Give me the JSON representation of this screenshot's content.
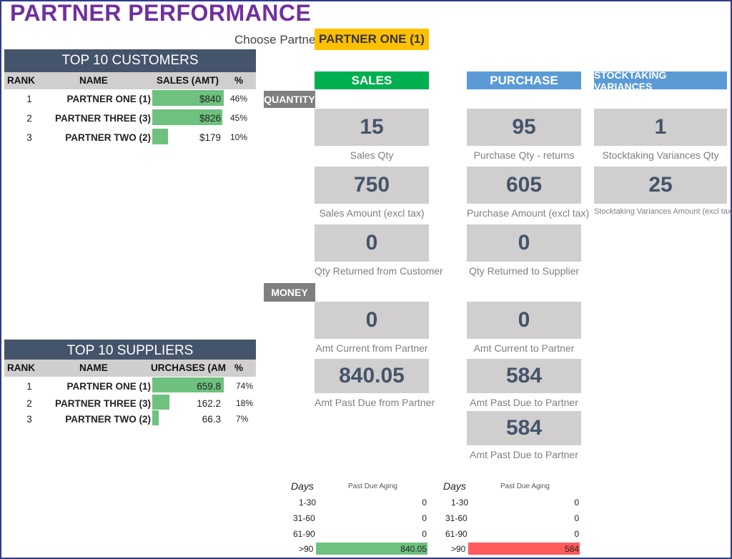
{
  "title": "PARTNER PERFORMANCE",
  "choose_label": "Choose Partner",
  "selected_partner": "PARTNER ONE (1)",
  "colors": {
    "accent": "#7030a0",
    "select": "#ffc000",
    "sales": "#00b050",
    "purchase": "#5b9bd5",
    "bar": "#6ec17f",
    "overdue": "#ff5b5b"
  },
  "customers": {
    "title": "TOP 10 CUSTOMERS",
    "headers": {
      "rank": "RANK",
      "name": "NAME",
      "sales": "SALES (AMT)",
      "pct": "%"
    },
    "rows": [
      {
        "rank": "1",
        "name": "PARTNER ONE (1)",
        "value": "$840",
        "pct": "46%",
        "share": 0.46
      },
      {
        "rank": "2",
        "name": "PARTNER THREE (3)",
        "value": "$826",
        "pct": "45%",
        "share": 0.45
      },
      {
        "rank": "3",
        "name": "PARTNER TWO (2)",
        "value": "$179",
        "pct": "10%",
        "share": 0.1
      }
    ]
  },
  "suppliers": {
    "title": "TOP 10 SUPPLIERS",
    "headers": {
      "rank": "RANK",
      "name": "NAME",
      "purchases": "URCHASES (AM",
      "pct": "%"
    },
    "rows": [
      {
        "rank": "1",
        "name": "PARTNER ONE (1)",
        "value": "659.8",
        "pct": "74%",
        "share": 0.74
      },
      {
        "rank": "2",
        "name": "PARTNER THREE (3)",
        "value": "162.2",
        "pct": "18%",
        "share": 0.18
      },
      {
        "rank": "3",
        "name": "PARTNER TWO (2)",
        "value": "66.3",
        "pct": "7%",
        "share": 0.07
      }
    ]
  },
  "labels": {
    "quantity": "QUANTITY",
    "money": "MONEY",
    "sales": "SALES",
    "purchase": "PURCHASE",
    "stocktaking": "STOCKTAKING VARIANCES"
  },
  "sales": {
    "qty": {
      "value": "15",
      "caption": "Sales Qty"
    },
    "amount": {
      "value": "750",
      "caption": "Sales Amount (excl tax)"
    },
    "returned": {
      "value": "0",
      "caption": "Qty Returned from Customer"
    },
    "amt_current": {
      "value": "0",
      "caption": "Amt Current from Partner"
    },
    "amt_past_due": {
      "value": "840.05",
      "caption": "Amt Past Due from Partner"
    }
  },
  "purchase": {
    "qty": {
      "value": "95",
      "caption": "Purchase Qty - returns"
    },
    "amount": {
      "value": "605",
      "caption": "Purchase Amount (excl tax)"
    },
    "returned": {
      "value": "0",
      "caption": "Qty Returned to Supplier"
    },
    "amt_current": {
      "value": "0",
      "caption": "Amt Current to Partner"
    },
    "amt_past_due": {
      "value": "584",
      "caption": "Amt Past Due to Partner"
    },
    "amt_past_due_2": {
      "value": "584",
      "caption": "Amt Past Due to Partner"
    }
  },
  "stocktaking": {
    "qty": {
      "value": "1",
      "caption": "Stocktaking Variances Qty"
    },
    "amount": {
      "value": "25",
      "caption": "Stocktaking Variances Amount (excl tax)"
    }
  },
  "aging_sales": {
    "days_label": "Days",
    "sub_label": "Past Due Aging",
    "rows": [
      {
        "range": "1-30",
        "value": "0",
        "level": 0
      },
      {
        "range": "31-60",
        "value": "0",
        "level": 0
      },
      {
        "range": "61-90",
        "value": "0",
        "level": 0
      },
      {
        "range": ">90",
        "value": "840.05",
        "level": 1
      }
    ]
  },
  "aging_purchase": {
    "days_label": "Days",
    "sub_label": "Past Due Aging",
    "rows": [
      {
        "range": "1-30",
        "value": "0",
        "level": 0
      },
      {
        "range": "31-60",
        "value": "0",
        "level": 0
      },
      {
        "range": "61-90",
        "value": "0",
        "level": 0
      },
      {
        "range": ">90",
        "value": "584",
        "level": 1
      }
    ]
  }
}
